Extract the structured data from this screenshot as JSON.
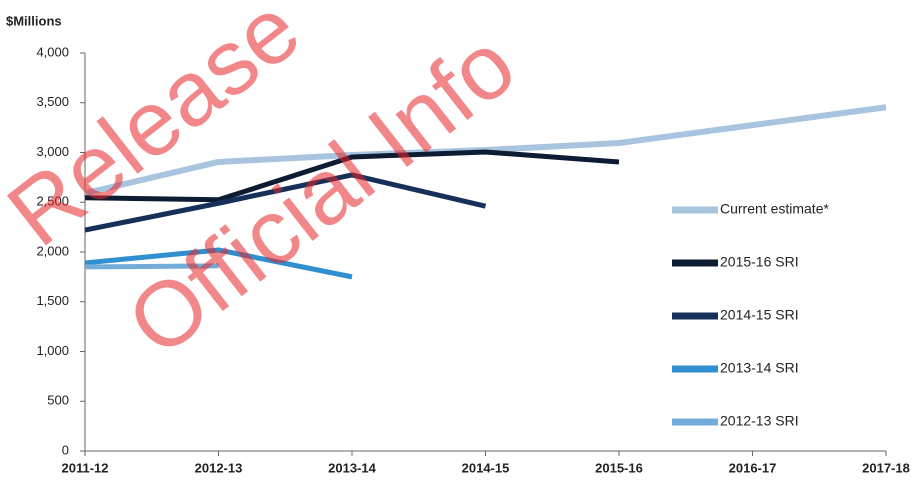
{
  "chart_data": {
    "type": "line",
    "y_label": "$Millions",
    "annotations": [
      "Release",
      "Official Info"
    ],
    "categories": [
      "2011-12",
      "2012-13",
      "2013-14",
      "2014-15",
      "2015-16",
      "2016-17",
      "2017-18"
    ],
    "series": [
      {
        "name": "Current estimate*",
        "color": "#a9c4de",
        "values": [
          2590,
          2905,
          2975,
          3025,
          3095,
          3275,
          3455
        ]
      },
      {
        "name": "2015-16 SRI",
        "color": "#0d1b33",
        "values": [
          2545,
          2525,
          2955,
          3005,
          2905,
          null,
          null
        ]
      },
      {
        "name": "2014-15 SRI",
        "color": "#17305a",
        "values": [
          2220,
          2490,
          2775,
          2460,
          null,
          null,
          null
        ]
      },
      {
        "name": "2013-14 SRI",
        "color": "#2f8fcf",
        "values": [
          1890,
          2020,
          1750,
          null,
          null,
          null,
          null
        ]
      },
      {
        "name": "2012-13 SRI",
        "color": "#74acd9",
        "values": [
          1850,
          1860,
          null,
          null,
          null,
          null,
          null
        ]
      }
    ],
    "ylim": [
      0,
      4000
    ],
    "yticks": [
      0,
      500,
      {
        "value": 1000,
        "label": "1,000"
      },
      {
        "value": 1500,
        "label": "1,500"
      },
      {
        "value": 2000,
        "label": "2,000"
      },
      {
        "value": 2500,
        "label": "2,500"
      },
      {
        "value": 3000,
        "label": "3,000"
      },
      {
        "value": 3500,
        "label": "3,500"
      },
      {
        "value": 4000,
        "label": "4,000"
      }
    ],
    "legend": "right"
  }
}
